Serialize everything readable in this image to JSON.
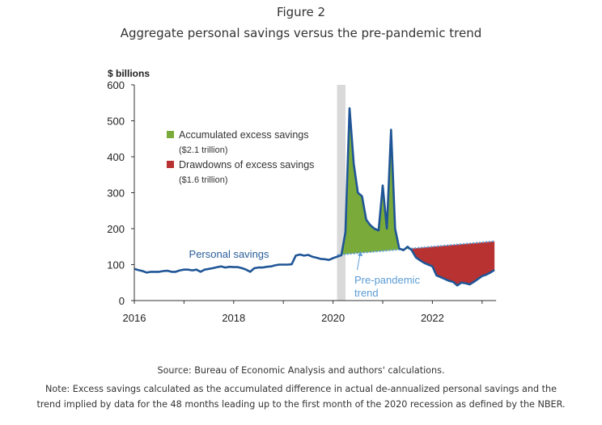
{
  "figure_label": "Figure 2",
  "source": "Source: Bureau of Economic Analysis and authors' calculations.",
  "note_line1": "Note: Excess savings calculated as the accumulated difference in actual de-annualized personal savings and the",
  "note_line2": "trend implied by data for the 48 months leading up to the first month of the 2020 recession as defined by the NBER.",
  "colors": {
    "personal_savings_line": "#1f5596",
    "trend_line": "#5b9bd5",
    "excess_savings_fill": "#7aab3a",
    "drawdown_fill": "#b83232",
    "recession_band": "#d9d9d9",
    "axis": "#333333"
  },
  "chart_data": {
    "type": "area",
    "title": "Aggregate personal savings versus the pre-pandemic trend",
    "ylabel": "$ billions",
    "xlabel": "",
    "ylim": [
      0,
      600
    ],
    "xlim": [
      2016.0,
      2023.25
    ],
    "yticks": [
      0,
      100,
      200,
      300,
      400,
      500,
      600
    ],
    "xticks": [
      2016,
      2017,
      2018,
      2019,
      2020,
      2021,
      2022,
      2023
    ],
    "xtick_labels": [
      {
        "value": 2016,
        "label": "2016"
      },
      {
        "value": 2018,
        "label": "2018"
      },
      {
        "value": 2020,
        "label": "2020"
      },
      {
        "value": 2022,
        "label": "2022"
      }
    ],
    "grid": false,
    "recession_band": {
      "start": 2020.08,
      "end": 2020.25
    },
    "legend": {
      "placement": "top-left",
      "entries": [
        {
          "label": "Accumulated excess savings",
          "sublabel": "($2.1 trillion)",
          "color_key": "excess_savings_fill"
        },
        {
          "label": "Drawdowns of excess savings",
          "sublabel": "($1.6 trillion)",
          "color_key": "drawdown_fill"
        }
      ]
    },
    "annotations": [
      {
        "text": "Personal savings",
        "x": 2017.1,
        "y": 130
      },
      {
        "text_lines": [
          "Pre-pandemic",
          "trend"
        ],
        "x": 2020.3,
        "y": 58,
        "arrow_to": {
          "x": 2020.55,
          "y": 142
        }
      }
    ],
    "series": [
      {
        "name": "Personal savings",
        "x": [
          2016.0,
          2016.083,
          2016.167,
          2016.25,
          2016.333,
          2016.417,
          2016.5,
          2016.583,
          2016.667,
          2016.75,
          2016.833,
          2016.917,
          2017.0,
          2017.083,
          2017.167,
          2017.25,
          2017.333,
          2017.417,
          2017.5,
          2017.583,
          2017.667,
          2017.75,
          2017.833,
          2017.917,
          2018.0,
          2018.083,
          2018.167,
          2018.25,
          2018.333,
          2018.417,
          2018.5,
          2018.583,
          2018.667,
          2018.75,
          2018.833,
          2018.917,
          2019.0,
          2019.083,
          2019.167,
          2019.25,
          2019.333,
          2019.417,
          2019.5,
          2019.583,
          2019.667,
          2019.75,
          2019.833,
          2019.917,
          2020.0,
          2020.083,
          2020.167,
          2020.25,
          2020.333,
          2020.417,
          2020.5,
          2020.583,
          2020.667,
          2020.75,
          2020.833,
          2020.917,
          2021.0,
          2021.083,
          2021.167,
          2021.25,
          2021.333,
          2021.417,
          2021.5,
          2021.583,
          2021.667,
          2021.75,
          2021.833,
          2021.917,
          2022.0,
          2022.083,
          2022.167,
          2022.25,
          2022.333,
          2022.417,
          2022.5,
          2022.583,
          2022.667,
          2022.75,
          2022.833,
          2022.917,
          2023.0,
          2023.083,
          2023.167,
          2023.25
        ],
        "values": [
          88,
          85,
          82,
          78,
          80,
          80,
          80,
          82,
          83,
          80,
          80,
          84,
          86,
          86,
          84,
          86,
          80,
          86,
          88,
          90,
          93,
          95,
          92,
          94,
          93,
          93,
          90,
          86,
          80,
          90,
          92,
          92,
          94,
          95,
          98,
          100,
          100,
          100,
          101,
          125,
          128,
          125,
          127,
          122,
          119,
          116,
          115,
          113,
          118,
          122,
          126,
          190,
          535,
          380,
          300,
          290,
          225,
          210,
          200,
          195,
          320,
          200,
          475,
          200,
          145,
          140,
          150,
          140,
          120,
          112,
          105,
          100,
          95,
          70,
          65,
          60,
          55,
          52,
          42,
          50,
          48,
          45,
          52,
          60,
          68,
          72,
          78,
          85
        ]
      },
      {
        "name": "Pre-pandemic trend",
        "x": [
          2020.083,
          2023.25
        ],
        "values": [
          127,
          165
        ]
      }
    ],
    "filled_areas": [
      {
        "name": "Accumulated excess savings",
        "total": "$2.1 trillion",
        "x_range": [
          2020.083,
          2021.583
        ],
        "fill": "above-trend"
      },
      {
        "name": "Drawdowns of excess savings",
        "total": "$1.6 trillion",
        "x_range": [
          2021.583,
          2023.25
        ],
        "fill": "below-trend"
      }
    ]
  }
}
